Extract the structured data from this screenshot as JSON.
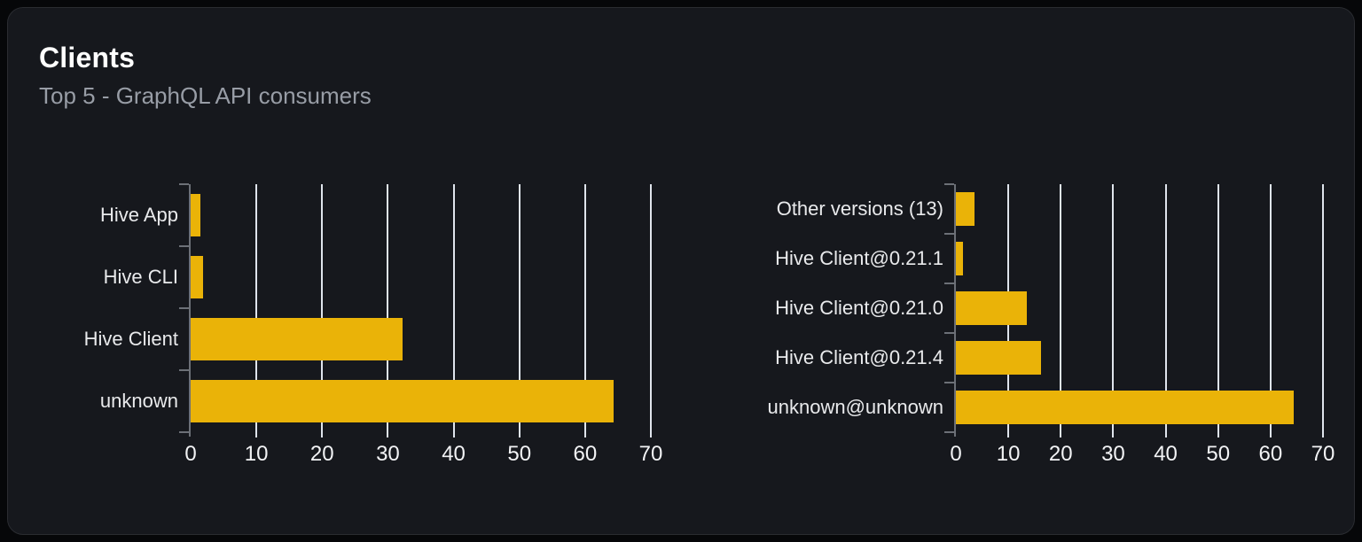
{
  "card": {
    "title": "Clients",
    "subtitle": "Top 5 - GraphQL API consumers"
  },
  "colors": {
    "accent_bar": "#eab308",
    "card_background": "#16181d",
    "page_background": "#060709",
    "card_border": "#2a2c31",
    "gridline": "#dfe4ec",
    "axis": "#6c7077",
    "title_text": "#ffffff",
    "subtitle_text": "#989da6",
    "label_text": "#e9eaec"
  },
  "chart_data": [
    {
      "type": "bar",
      "orientation": "horizontal",
      "title": "",
      "categories": [
        "Hive App",
        "Hive CLI",
        "Hive Client",
        "unknown"
      ],
      "values": [
        1.5,
        1.9,
        32.2,
        64.4
      ],
      "xlim": [
        0,
        70
      ],
      "xticks": [
        0,
        10,
        20,
        30,
        40,
        50,
        60,
        70
      ],
      "grid": true,
      "legend": false
    },
    {
      "type": "bar",
      "orientation": "horizontal",
      "title": "",
      "categories": [
        "Other versions (13)",
        "Hive Client@0.21.1",
        "Hive Client@0.21.0",
        "Hive Client@0.21.4",
        "unknown@unknown"
      ],
      "values": [
        3.6,
        1.4,
        13.5,
        16.2,
        64.4
      ],
      "xlim": [
        0,
        70
      ],
      "xticks": [
        0,
        10,
        20,
        30,
        40,
        50,
        60,
        70
      ],
      "grid": true,
      "legend": false
    }
  ]
}
